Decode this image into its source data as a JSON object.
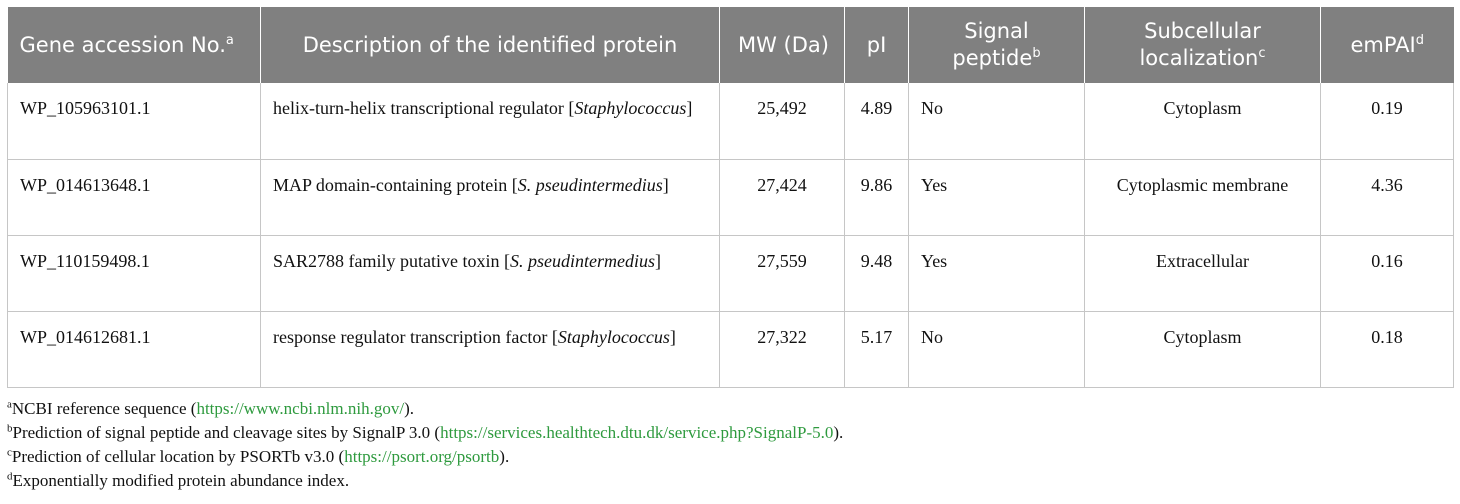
{
  "table": {
    "headers": {
      "accession": {
        "text": "Gene accession No.",
        "sup": "a"
      },
      "description": {
        "text": "Description of the identified protein"
      },
      "mw": {
        "text": "MW (Da)"
      },
      "pi": {
        "text": "pI"
      },
      "signal": {
        "text": "Signal peptide",
        "sup": "b"
      },
      "localization": {
        "text": "Subcellular localization",
        "sup": "c"
      },
      "empai": {
        "text": "emPAI",
        "sup": "d"
      }
    },
    "rows": [
      {
        "accession": "WP_105963101.1",
        "desc_prefix": "helix-turn-helix transcriptional regulator [",
        "desc_italic": "Staphylococcus",
        "desc_suffix": "]",
        "mw": "25,492",
        "pi": "4.89",
        "signal": "No",
        "localization": "Cytoplasm",
        "empai": "0.19"
      },
      {
        "accession": "WP_014613648.1",
        "desc_prefix": "MAP domain-containing protein [",
        "desc_italic": "S. pseudintermedius",
        "desc_suffix": "]",
        "mw": "27,424",
        "pi": "9.86",
        "signal": "Yes",
        "localization": "Cytoplasmic membrane",
        "empai": "4.36"
      },
      {
        "accession": "WP_110159498.1",
        "desc_prefix": "SAR2788 family putative toxin [",
        "desc_italic": "S. pseudintermedius",
        "desc_suffix": "]",
        "mw": "27,559",
        "pi": "9.48",
        "signal": "Yes",
        "localization": "Extracellular",
        "empai": "0.16"
      },
      {
        "accession": "WP_014612681.1",
        "desc_prefix": "response regulator transcription factor [",
        "desc_italic": "Staphylococcus",
        "desc_suffix": "]",
        "mw": "27,322",
        "pi": "5.17",
        "signal": "No",
        "localization": "Cytoplasm",
        "empai": "0.18"
      }
    ]
  },
  "footnotes": [
    {
      "mark": "a",
      "text": "NCBI reference sequence (",
      "link": "https://www.ncbi.nlm.nih.gov/",
      "after": ")."
    },
    {
      "mark": "b",
      "text": "Prediction of signal peptide and cleavage sites by SignalP 3.0 (",
      "link": "https://services.healthtech.dtu.dk/service.php?SignalP-5.0",
      "after": ")."
    },
    {
      "mark": "c",
      "text": "Prediction of cellular location by PSORTb v3.0 (",
      "link": "https://psort.org/psortb",
      "after": ")."
    },
    {
      "mark": "d",
      "text": "Exponentially modified protein abundance index.",
      "link": "",
      "after": ""
    }
  ],
  "colors": {
    "header_bg": "#808080",
    "link": "#2e9a3e",
    "border": "#c6c6c6"
  }
}
